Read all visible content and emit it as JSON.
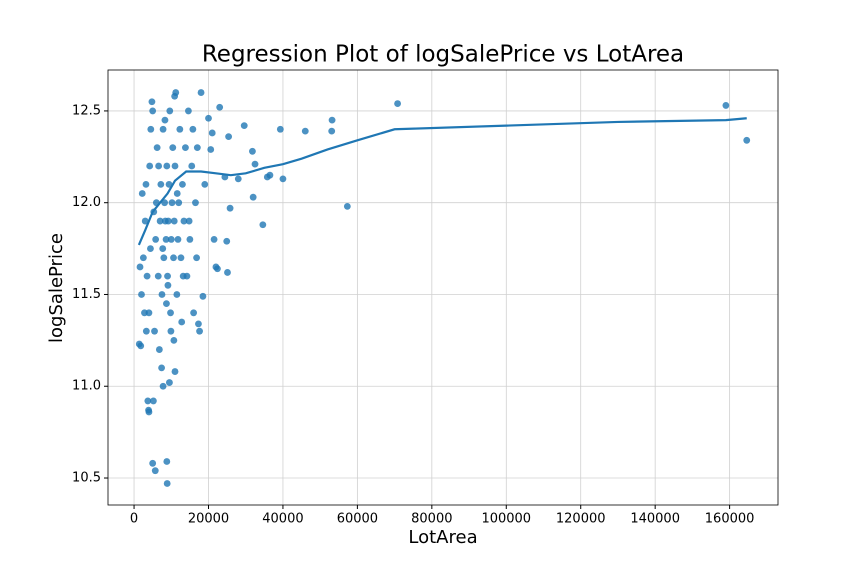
{
  "chart_data": {
    "type": "scatter",
    "title": "Regression Plot of logSalePrice vs LotArea",
    "x_label": "LotArea",
    "y_label": "logSalePrice",
    "xlim": [
      -7000,
      173000
    ],
    "ylim": [
      10.353,
      12.723
    ],
    "xticks": [
      0,
      20000,
      40000,
      60000,
      80000,
      100000,
      120000,
      140000,
      160000
    ],
    "yticks": [
      {
        "value": 10.5,
        "label": "10.5"
      },
      {
        "value": 11.0,
        "label": "11.0"
      },
      {
        "value": 11.5,
        "label": "11.5"
      },
      {
        "value": 12.0,
        "label": "12.0"
      },
      {
        "value": 12.5,
        "label": "12.5"
      }
    ],
    "grid": true,
    "points": {
      "color": "#1f77b4",
      "x": [
        159000,
        164600,
        70800,
        57300,
        53200,
        53100,
        46000,
        39300,
        40000,
        36500,
        35800,
        34600,
        32500,
        31800,
        32000,
        29600,
        28000,
        25800,
        25400,
        24400,
        24900,
        25100,
        22400,
        22000,
        21500,
        20600,
        21000,
        23000,
        20000,
        18500,
        17300,
        17600,
        8900,
        8800,
        5000,
        5700,
        3900,
        4000,
        3700,
        5200,
        7800,
        9500,
        1400,
        1800,
        11000,
        2000,
        2500,
        3000,
        3200,
        3500,
        4000,
        4200,
        4500,
        5000,
        5500,
        5800,
        6000,
        6200,
        6500,
        7000,
        7200,
        7500,
        7800,
        8000,
        8200,
        8400,
        8600,
        8800,
        9000,
        9200,
        9400,
        9600,
        9800,
        10000,
        10200,
        10400,
        10600,
        10800,
        11000,
        11200,
        11500,
        11800,
        12000,
        12300,
        12600,
        13000,
        13400,
        13800,
        14200,
        14600,
        15000,
        15500,
        16000,
        16500,
        17000,
        18000,
        19000,
        6800,
        7400,
        9900,
        3300,
        2200,
        1600,
        12800,
        4800,
        10900,
        8300,
        6600,
        11600,
        9100,
        7700,
        5300,
        13200,
        14800,
        15800,
        16800,
        2800,
        4400,
        10700,
        8700
      ],
      "values": [
        12.53,
        12.34,
        12.54,
        11.98,
        12.45,
        12.39,
        12.39,
        12.4,
        12.13,
        12.15,
        12.14,
        11.88,
        12.21,
        12.28,
        12.03,
        12.42,
        12.13,
        11.97,
        12.36,
        12.14,
        11.79,
        11.62,
        11.64,
        11.65,
        11.8,
        12.29,
        12.38,
        12.52,
        12.46,
        11.49,
        11.34,
        11.3,
        10.47,
        10.59,
        10.58,
        10.54,
        10.87,
        10.86,
        10.92,
        10.92,
        11.0,
        11.02,
        11.23,
        11.22,
        11.08,
        11.5,
        11.7,
        11.9,
        12.1,
        11.6,
        11.4,
        12.2,
        12.4,
        12.5,
        11.3,
        11.8,
        12.0,
        12.3,
        11.6,
        11.9,
        12.1,
        11.5,
        12.4,
        11.7,
        12.0,
        11.9,
        11.8,
        12.2,
        11.6,
        11.9,
        12.1,
        12.5,
        11.4,
        11.8,
        12.0,
        12.3,
        11.7,
        11.9,
        12.2,
        12.6,
        11.5,
        11.8,
        12.0,
        12.4,
        11.7,
        12.1,
        11.9,
        12.3,
        11.6,
        12.5,
        11.8,
        12.2,
        11.4,
        12.0,
        12.3,
        12.6,
        12.1,
        11.2,
        11.1,
        11.3,
        11.3,
        12.05,
        11.65,
        11.35,
        12.55,
        12.58,
        12.45,
        12.2,
        12.05,
        11.55,
        11.75,
        11.95,
        11.6,
        11.9,
        12.4,
        11.7,
        11.4,
        11.75,
        11.25,
        11.45
      ]
    },
    "fit": {
      "color": "#1f77b4",
      "x": [
        1300,
        3000,
        5000,
        7000,
        9000,
        11000,
        14000,
        18000,
        22000,
        26000,
        30000,
        35000,
        40000,
        45000,
        52000,
        60000,
        70000,
        100000,
        130000,
        159000,
        164600
      ],
      "values": [
        11.77,
        11.85,
        11.95,
        12.0,
        12.05,
        12.12,
        12.17,
        12.17,
        12.16,
        12.15,
        12.16,
        12.19,
        12.21,
        12.24,
        12.29,
        12.34,
        12.4,
        12.42,
        12.44,
        12.45,
        12.46
      ]
    }
  }
}
